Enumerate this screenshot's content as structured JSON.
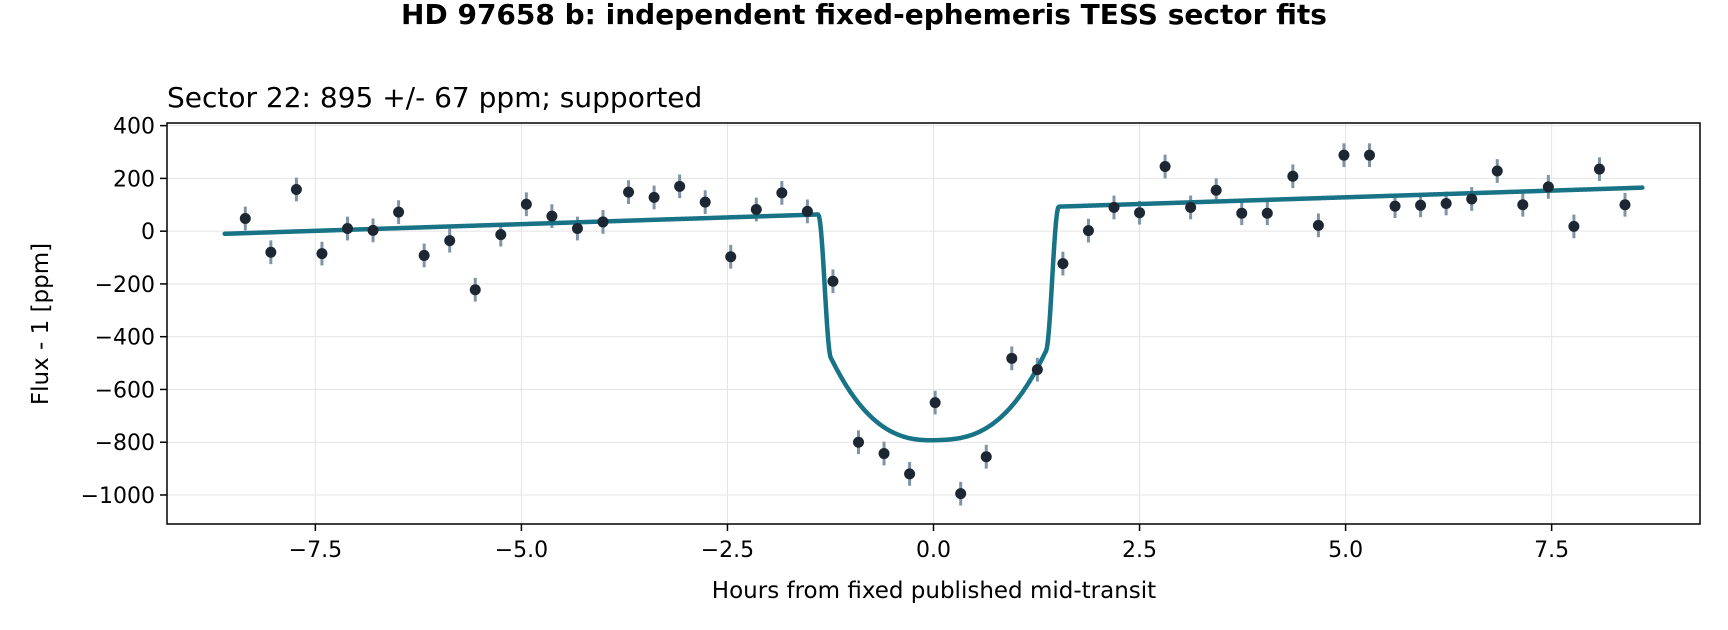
{
  "figure": {
    "suptitle": "HD 97658 b: independent fixed-ephemeris TESS sector fits"
  },
  "chart_data": {
    "type": "scatter",
    "title": "Sector 22: 895 +/- 67 ppm; supported",
    "xlabel": "Hours from fixed published mid-transit",
    "ylabel": "Flux - 1 [ppm]",
    "xlim": [
      -9.3,
      9.3
    ],
    "ylim": [
      -1110,
      410
    ],
    "xticks": [
      -7.5,
      -5.0,
      -2.5,
      0.0,
      2.5,
      5.0,
      7.5
    ],
    "xtick_labels": [
      "−7.5",
      "−5.0",
      "−2.5",
      "0.0",
      "2.5",
      "5.0",
      "7.5"
    ],
    "yticks": [
      400,
      200,
      0,
      -200,
      -400,
      -600,
      -800,
      -1000
    ],
    "ytick_labels": [
      "400",
      "200",
      "0",
      "−200",
      "−400",
      "−600",
      "−800",
      "−1000"
    ],
    "grid": true,
    "colors": {
      "model": "#177385",
      "points": "#1c2733",
      "errorbars": "#7f94a6",
      "grid": "#e4e4e4"
    },
    "series": [
      {
        "type": "scatter",
        "error": 45,
        "points": [
          [
            -8.35,
            48
          ],
          [
            -8.04,
            -80
          ],
          [
            -7.73,
            158
          ],
          [
            -7.42,
            -85
          ],
          [
            -7.11,
            10
          ],
          [
            -6.8,
            3
          ],
          [
            -6.49,
            72
          ],
          [
            -6.18,
            -92
          ],
          [
            -5.87,
            -36
          ],
          [
            -5.56,
            -222
          ],
          [
            -5.25,
            -13
          ],
          [
            -4.94,
            102
          ],
          [
            -4.63,
            57
          ],
          [
            -4.32,
            10
          ],
          [
            -4.01,
            35
          ],
          [
            -3.7,
            148
          ],
          [
            -3.39,
            128
          ],
          [
            -3.08,
            170
          ],
          [
            -2.77,
            110
          ],
          [
            -2.46,
            -97
          ],
          [
            -2.15,
            82
          ],
          [
            -1.84,
            145
          ],
          [
            -1.53,
            75
          ],
          [
            -1.22,
            -190
          ],
          [
            -0.91,
            -800
          ],
          [
            -0.6,
            -843
          ],
          [
            -0.29,
            -920
          ],
          [
            0.02,
            -650
          ],
          [
            0.33,
            -995
          ],
          [
            0.64,
            -855
          ],
          [
            0.95,
            -482
          ],
          [
            1.26,
            -525
          ],
          [
            1.57,
            -123
          ],
          [
            1.88,
            2
          ],
          [
            2.19,
            90
          ],
          [
            2.5,
            70
          ],
          [
            2.81,
            245
          ],
          [
            3.12,
            90
          ],
          [
            3.43,
            155
          ],
          [
            3.74,
            68
          ],
          [
            4.05,
            68
          ],
          [
            4.36,
            208
          ],
          [
            4.67,
            22
          ],
          [
            4.98,
            288
          ],
          [
            5.29,
            288
          ],
          [
            5.6,
            95
          ],
          [
            5.91,
            98
          ],
          [
            6.22,
            105
          ],
          [
            6.53,
            122
          ],
          [
            6.84,
            228
          ],
          [
            7.15,
            100
          ],
          [
            7.46,
            168
          ],
          [
            7.77,
            18
          ],
          [
            8.08,
            235
          ],
          [
            8.39,
            100
          ]
        ]
      },
      {
        "type": "line",
        "model": {
          "baseline_start": [
            -8.6,
            -10
          ],
          "baseline_end": [
            8.6,
            165
          ],
          "t_ingress": -1.4,
          "t_egress": 1.52,
          "ingress_duration": 0.16,
          "depth_ppm": 870
        }
      }
    ]
  }
}
